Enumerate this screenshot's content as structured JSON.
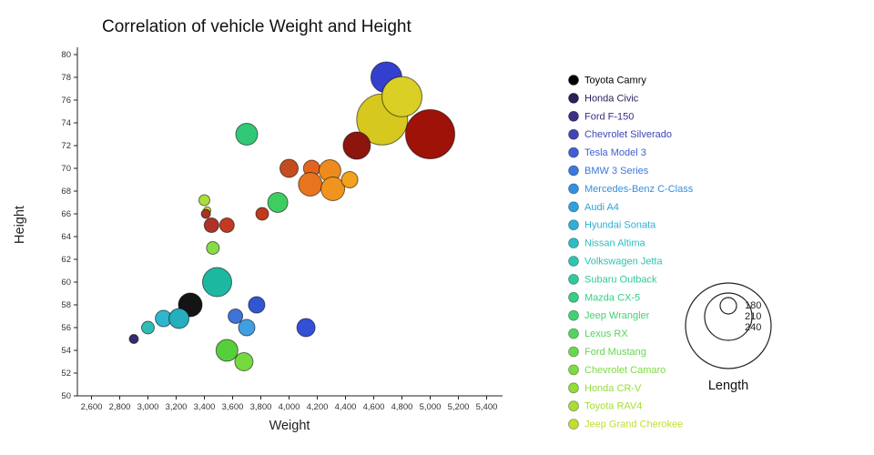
{
  "title": "Correlation of vehicle Weight and Height",
  "chart_data": {
    "type": "bubble",
    "title": "Correlation of vehicle Weight and Height",
    "xlabel": "Weight",
    "ylabel": "Height",
    "xlim": [
      2500,
      5500
    ],
    "ylim": [
      50,
      80
    ],
    "grid": false,
    "xticks": [
      2600,
      2800,
      3000,
      3200,
      3400,
      3600,
      3800,
      4000,
      4200,
      4400,
      4600,
      4800,
      5000,
      5200,
      5400
    ],
    "yticks": [
      50,
      52,
      54,
      56,
      58,
      60,
      62,
      64,
      66,
      68,
      70,
      72,
      74,
      76,
      78,
      80
    ],
    "points": [
      {
        "x": 2900,
        "y": 55,
        "r": 5,
        "color": "#3a2a6e"
      },
      {
        "x": 3300,
        "y": 58,
        "r": 13,
        "color": "#141414"
      },
      {
        "x": 3000,
        "y": 56,
        "r": 7,
        "color": "#2fbcb4"
      },
      {
        "x": 3110,
        "y": 56.8,
        "r": 9,
        "color": "#2fb6cf"
      },
      {
        "x": 3220,
        "y": 56.8,
        "r": 11,
        "color": "#25aebe"
      },
      {
        "x": 3490,
        "y": 60,
        "r": 16,
        "color": "#1db8a0"
      },
      {
        "x": 3700,
        "y": 56,
        "r": 9,
        "color": "#3f9fe0"
      },
      {
        "x": 3620,
        "y": 57,
        "r": 8,
        "color": "#3e73d8"
      },
      {
        "x": 3770,
        "y": 58,
        "r": 9,
        "color": "#3156d2"
      },
      {
        "x": 4120,
        "y": 56,
        "r": 10,
        "color": "#3350d6"
      },
      {
        "x": 3560,
        "y": 54,
        "r": 12,
        "color": "#57cf3c"
      },
      {
        "x": 3680,
        "y": 53,
        "r": 10,
        "color": "#74da3e"
      },
      {
        "x": 3460,
        "y": 63,
        "r": 7,
        "color": "#86dc44"
      },
      {
        "x": 3700,
        "y": 73,
        "r": 12,
        "color": "#31c878"
      },
      {
        "x": 3920,
        "y": 67,
        "r": 11,
        "color": "#3fcd62"
      },
      {
        "x": 3400,
        "y": 67.2,
        "r": 6,
        "color": "#aade3c"
      },
      {
        "x": 3420,
        "y": 66.3,
        "r": 4,
        "color": "#c6df33"
      },
      {
        "x": 3410,
        "y": 66,
        "r": 5,
        "color": "#a93226"
      },
      {
        "x": 3450,
        "y": 65,
        "r": 8,
        "color": "#b03226"
      },
      {
        "x": 3560,
        "y": 65,
        "r": 8,
        "color": "#c23a22"
      },
      {
        "x": 3810,
        "y": 66,
        "r": 7,
        "color": "#bf3a1e"
      },
      {
        "x": 4000,
        "y": 70,
        "r": 10,
        "color": "#c44d20"
      },
      {
        "x": 4160,
        "y": 70,
        "r": 9,
        "color": "#e2641f"
      },
      {
        "x": 4150,
        "y": 68.6,
        "r": 13,
        "color": "#e8741e"
      },
      {
        "x": 4290,
        "y": 69.8,
        "r": 12,
        "color": "#ef8b1c"
      },
      {
        "x": 4310,
        "y": 68.2,
        "r": 13,
        "color": "#f0941f"
      },
      {
        "x": 4430,
        "y": 69,
        "r": 9,
        "color": "#f3a11f"
      },
      {
        "x": 4690,
        "y": 78,
        "r": 17,
        "color": "#3340cf"
      },
      {
        "x": 4660,
        "y": 74.3,
        "r": 28,
        "color": "#d6c81f"
      },
      {
        "x": 4800,
        "y": 76.3,
        "r": 22,
        "color": "#d9cf25"
      },
      {
        "x": 4480,
        "y": 72,
        "r": 15,
        "color": "#8c150d"
      },
      {
        "x": 5000,
        "y": 73,
        "r": 27,
        "color": "#9e1208"
      }
    ],
    "legend": [
      {
        "name": "Toyota Camry",
        "color": "#000000"
      },
      {
        "name": "Honda Civic",
        "color": "#2e1e5b"
      },
      {
        "name": "Ford F-150",
        "color": "#3b2f87"
      },
      {
        "name": "Chevrolet Silverado",
        "color": "#3f46b5"
      },
      {
        "name": "Tesla Model 3",
        "color": "#3f5fd2"
      },
      {
        "name": "BMW 3 Series",
        "color": "#3b78dd"
      },
      {
        "name": "Mercedes-Benz C-Class",
        "color": "#338fe2"
      },
      {
        "name": "Audi A4",
        "color": "#2fa0df"
      },
      {
        "name": "Hyundai Sonata",
        "color": "#2fb0d5"
      },
      {
        "name": "Nissan Altima",
        "color": "#2fbcc5"
      },
      {
        "name": "Volkswagen Jetta",
        "color": "#2cc5b2"
      },
      {
        "name": "Subaru Outback",
        "color": "#2eca9e"
      },
      {
        "name": "Mazda CX-5",
        "color": "#35ce87"
      },
      {
        "name": "Jeep Wrangler",
        "color": "#41d272"
      },
      {
        "name": "Lexus RX",
        "color": "#52d55f"
      },
      {
        "name": "Ford Mustang",
        "color": "#66d84e"
      },
      {
        "name": "Chevrolet Camaro",
        "color": "#7cdb41"
      },
      {
        "name": "Honda CR-V",
        "color": "#92dd39"
      },
      {
        "name": "Toyota RAV4",
        "color": "#a8de34"
      },
      {
        "name": "Jeep Grand Cherokee",
        "color": "#bfdf31"
      }
    ],
    "size_legend": {
      "label": "Length",
      "items": [
        {
          "value": "180",
          "r": 9
        },
        {
          "value": "210",
          "r": 26
        },
        {
          "value": "240",
          "r": 47
        }
      ]
    }
  }
}
